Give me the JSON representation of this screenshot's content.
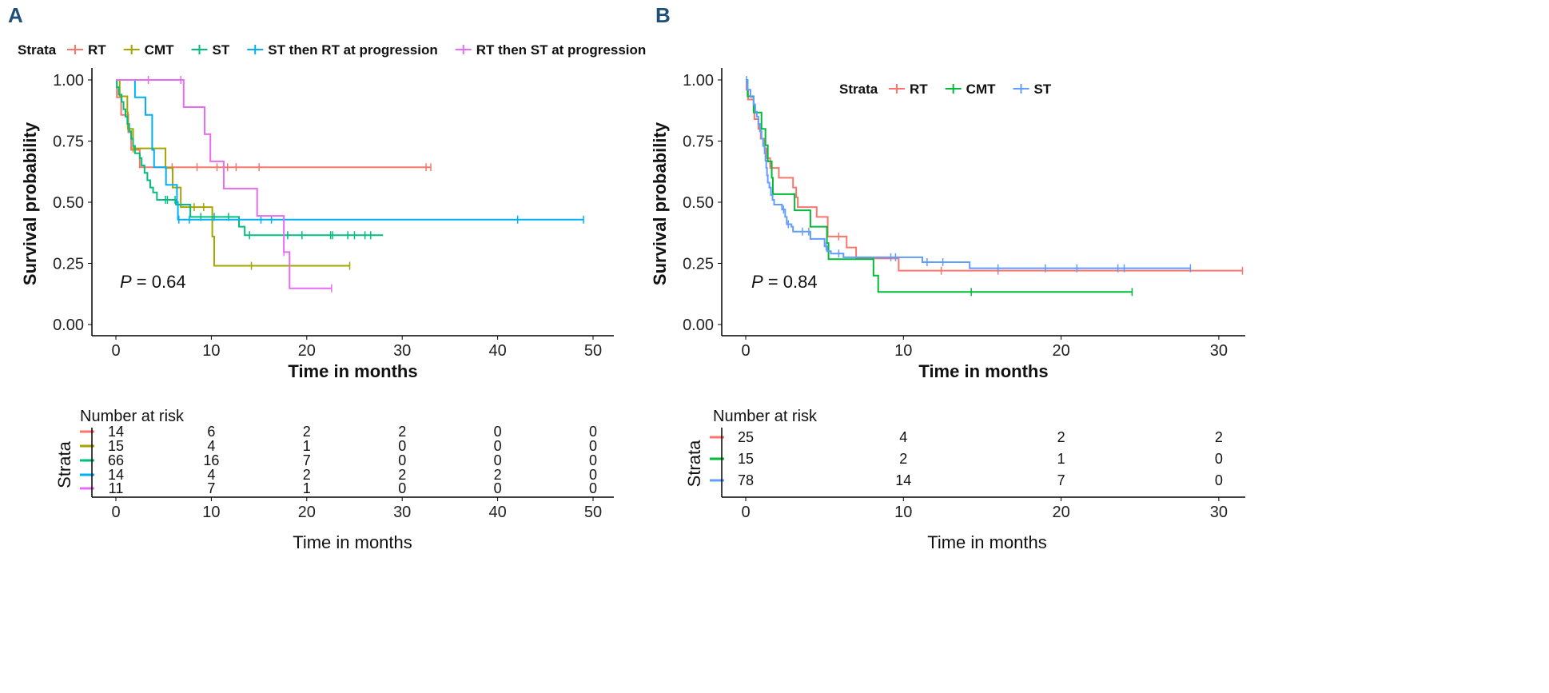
{
  "chart_data": [
    {
      "panel_label": "A",
      "type": "line",
      "subtype": "kaplan-meier",
      "xlabel": "Time in months",
      "ylabel": "Survival probability",
      "xlim": [
        0,
        52
      ],
      "ylim": [
        0,
        1
      ],
      "xticks": [
        0,
        10,
        20,
        30,
        40,
        50
      ],
      "yticks": [
        "0.00",
        "0.25",
        "0.50",
        "0.75",
        "1.00"
      ],
      "legend_title": "Strata",
      "legend_position": "top",
      "pvalue_prefix": "P",
      "pvalue_text": " = 0.64",
      "series": [
        {
          "name": "RT",
          "color": "#F8766D",
          "end": 33,
          "steps": [
            [
              0.1,
              0.929
            ],
            [
              0.55,
              0.857
            ],
            [
              1.3,
              0.786
            ],
            [
              1.6,
              0.714
            ],
            [
              2.5,
              0.643
            ]
          ],
          "censor": [
            5.9,
            8.5,
            10.6,
            11.7,
            12.6,
            15,
            32.5,
            33
          ]
        },
        {
          "name": "CMT",
          "color": "#A3A500",
          "end": 24.5,
          "steps": [
            [
              0.4,
              0.933
            ],
            [
              1.2,
              0.867
            ],
            [
              1.25,
              0.8
            ],
            [
              1.8,
              0.72
            ],
            [
              5.2,
              0.64
            ],
            [
              5.95,
              0.56
            ],
            [
              6.8,
              0.48
            ],
            [
              10.1,
              0.36
            ],
            [
              10.3,
              0.24
            ]
          ],
          "censor": [
            1.8,
            8.2,
            9.2,
            14.2,
            24.5
          ]
        },
        {
          "name": "ST",
          "color": "#00BF7D",
          "end": 28,
          "steps": [
            [
              0.1,
              0.97
            ],
            [
              0.3,
              0.94
            ],
            [
              0.6,
              0.91
            ],
            [
              0.8,
              0.88
            ],
            [
              1.0,
              0.85
            ],
            [
              1.2,
              0.82
            ],
            [
              1.4,
              0.79
            ],
            [
              1.6,
              0.76
            ],
            [
              1.8,
              0.73
            ],
            [
              2.0,
              0.7
            ],
            [
              2.5,
              0.68
            ],
            [
              2.7,
              0.65
            ],
            [
              3.0,
              0.62
            ],
            [
              3.3,
              0.59
            ],
            [
              3.6,
              0.56
            ],
            [
              3.9,
              0.54
            ],
            [
              4.3,
              0.51
            ],
            [
              6.3,
              0.49
            ],
            [
              7.8,
              0.44
            ],
            [
              12.9,
              0.4
            ],
            [
              13.5,
              0.365
            ]
          ],
          "censor": [
            5.2,
            5.4,
            6.2,
            8.9,
            10.3,
            11.8,
            14,
            18,
            19.5,
            22.5,
            22.7,
            24.3,
            25,
            26.1,
            26.7
          ]
        },
        {
          "name": "ST then RT at progression",
          "color": "#00B0F6",
          "end": 49,
          "steps": [
            [
              2.0,
              0.929
            ],
            [
              3.1,
              0.857
            ],
            [
              3.8,
              0.714
            ],
            [
              4.0,
              0.643
            ],
            [
              5.25,
              0.571
            ],
            [
              6.4,
              0.5
            ],
            [
              6.5,
              0.429
            ]
          ],
          "censor": [
            6.6,
            7.7,
            15.2,
            16.3,
            42.1,
            49
          ]
        },
        {
          "name": "RT then ST at progression",
          "color": "#E76BF3",
          "end": 22.6,
          "steps": [
            [
              7.1,
              0.889
            ],
            [
              9.3,
              0.778
            ],
            [
              9.9,
              0.667
            ],
            [
              11.3,
              0.556
            ],
            [
              14.8,
              0.444
            ],
            [
              17.6,
              0.296
            ],
            [
              18.2,
              0.148
            ]
          ],
          "censor": [
            3.4,
            6.8,
            17.6,
            22.6
          ]
        }
      ],
      "risk_table": {
        "title": "Number at risk",
        "ylabel": "Strata",
        "xlabel": "Time in months",
        "times": [
          0,
          10,
          20,
          30,
          40,
          50
        ],
        "rows": [
          [
            14,
            6,
            2,
            2,
            0,
            0
          ],
          [
            15,
            4,
            1,
            0,
            0,
            0
          ],
          [
            66,
            16,
            7,
            0,
            0,
            0
          ],
          [
            14,
            4,
            2,
            2,
            2,
            0
          ],
          [
            11,
            7,
            1,
            0,
            0,
            0
          ]
        ]
      }
    },
    {
      "panel_label": "B",
      "type": "line",
      "subtype": "kaplan-meier",
      "xlabel": "Time in months",
      "ylabel": "Survival probability",
      "xlim": [
        0,
        31.5
      ],
      "ylim": [
        0,
        1
      ],
      "xticks": [
        0,
        10,
        20,
        30
      ],
      "yticks": [
        "0.00",
        "0.25",
        "0.50",
        "0.75",
        "1.00"
      ],
      "legend_title": "Strata",
      "legend_position": "top-inside",
      "pvalue_prefix": "P",
      "pvalue_text": " = 0.84",
      "series": [
        {
          "name": "RT",
          "color": "#F8766D",
          "end": 31.5,
          "steps": [
            [
              0.05,
              0.96
            ],
            [
              0.15,
              0.92
            ],
            [
              0.5,
              0.88
            ],
            [
              0.55,
              0.84
            ],
            [
              0.8,
              0.8
            ],
            [
              0.95,
              0.76
            ],
            [
              1.2,
              0.72
            ],
            [
              1.3,
              0.68
            ],
            [
              1.55,
              0.64
            ],
            [
              2.1,
              0.6
            ],
            [
              3.0,
              0.56
            ],
            [
              3.2,
              0.52
            ],
            [
              3.3,
              0.48
            ],
            [
              4.5,
              0.44
            ],
            [
              5.2,
              0.36
            ],
            [
              6.4,
              0.315
            ],
            [
              7.0,
              0.27
            ],
            [
              9.7,
              0.22
            ]
          ],
          "censor": [
            5.9,
            12.4,
            16,
            31.5
          ]
        },
        {
          "name": "CMT",
          "color": "#00BA38",
          "end": 24.5,
          "steps": [
            [
              0.12,
              0.933
            ],
            [
              0.5,
              0.867
            ],
            [
              1.0,
              0.8
            ],
            [
              1.25,
              0.733
            ],
            [
              1.4,
              0.667
            ],
            [
              1.65,
              0.6
            ],
            [
              1.72,
              0.533
            ],
            [
              3.1,
              0.467
            ],
            [
              4.1,
              0.4
            ],
            [
              5.15,
              0.333
            ],
            [
              5.25,
              0.267
            ],
            [
              8.1,
              0.2
            ],
            [
              8.4,
              0.133
            ]
          ],
          "censor": [
            14.3,
            24.5
          ]
        },
        {
          "name": "ST",
          "color": "#619CFF",
          "end": 28.2,
          "steps": [
            [
              0.1,
              0.96
            ],
            [
              0.3,
              0.93
            ],
            [
              0.5,
              0.9
            ],
            [
              0.6,
              0.87
            ],
            [
              0.7,
              0.85
            ],
            [
              0.8,
              0.82
            ],
            [
              0.9,
              0.79
            ],
            [
              1.0,
              0.76
            ],
            [
              1.1,
              0.73
            ],
            [
              1.2,
              0.7
            ],
            [
              1.25,
              0.67
            ],
            [
              1.3,
              0.64
            ],
            [
              1.35,
              0.61
            ],
            [
              1.4,
              0.58
            ],
            [
              1.5,
              0.56
            ],
            [
              1.6,
              0.53
            ],
            [
              1.7,
              0.51
            ],
            [
              1.8,
              0.49
            ],
            [
              2.3,
              0.47
            ],
            [
              2.5,
              0.44
            ],
            [
              2.6,
              0.41
            ],
            [
              2.9,
              0.4
            ],
            [
              3.0,
              0.38
            ],
            [
              4.1,
              0.35
            ],
            [
              5.0,
              0.32
            ],
            [
              5.15,
              0.3
            ],
            [
              5.4,
              0.29
            ],
            [
              6.2,
              0.275
            ],
            [
              11.2,
              0.255
            ],
            [
              14.2,
              0.23
            ]
          ],
          "censor": [
            0.05,
            2.4,
            2.7,
            3.6,
            4.0,
            5.1,
            5.9,
            9.2,
            9.5,
            11.5,
            12.5,
            16,
            19,
            21,
            23.6,
            24,
            28.2
          ]
        }
      ],
      "risk_table": {
        "title": "Number at risk",
        "ylabel": "Strata",
        "xlabel": "Time in months",
        "times": [
          0,
          10,
          20,
          30
        ],
        "rows": [
          [
            25,
            4,
            2,
            2
          ],
          [
            15,
            2,
            1,
            0
          ],
          [
            78,
            14,
            7,
            0
          ]
        ]
      }
    }
  ]
}
